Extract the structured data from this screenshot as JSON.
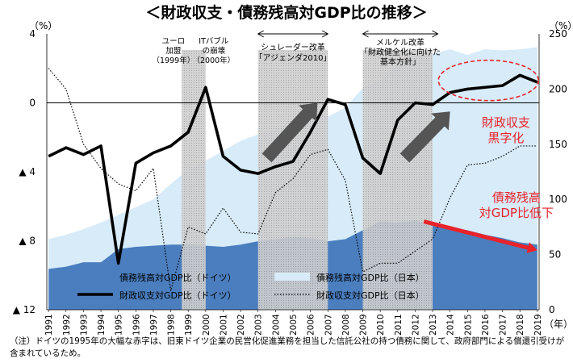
{
  "chart_data": {
    "type": "line",
    "title": "＜財政収支・債務残高対GDP比の推移＞",
    "left_axis": {
      "unit": "（%）",
      "ticks": [
        4,
        0,
        -4,
        -8,
        -12
      ],
      "tick_labels": [
        "4",
        "0",
        "▲ 4",
        "▲ 8",
        "▲ 12"
      ],
      "ylim": [
        -12,
        4
      ]
    },
    "right_axis": {
      "unit": "（%）",
      "ticks": [
        250,
        200,
        150,
        100,
        50,
        0
      ],
      "tick_labels": [
        "250",
        "200",
        "150",
        "100",
        "50",
        "0"
      ],
      "ylim": [
        0,
        250
      ]
    },
    "x_unit": "（年）",
    "x": [
      1991,
      1992,
      1993,
      1994,
      1995,
      1996,
      1997,
      1998,
      1999,
      2000,
      2001,
      2002,
      2003,
      2004,
      2005,
      2006,
      2007,
      2008,
      2009,
      2010,
      2011,
      2012,
      2013,
      2014,
      2015,
      2016,
      2017,
      2018,
      2019
    ],
    "series": [
      {
        "name": "債務残高対GDP比（ドイツ）",
        "axis": "right",
        "style": "area",
        "color": "#4a7ebf",
        "values": [
          37,
          39,
          43,
          43,
          55,
          57,
          58,
          59,
          59,
          58,
          57,
          59,
          62,
          64,
          66,
          65,
          62,
          64,
          72,
          80,
          79,
          81,
          77,
          75,
          72,
          68,
          65,
          61,
          59
        ]
      },
      {
        "name": "債務残高対GDP比（日本）",
        "axis": "right",
        "style": "area",
        "color": "#d7ebf8",
        "values": [
          64,
          68,
          73,
          79,
          86,
          93,
          100,
          114,
          127,
          135,
          144,
          153,
          159,
          163,
          170,
          176,
          175,
          183,
          201,
          207,
          222,
          229,
          232,
          236,
          231,
          236,
          235,
          236,
          238
        ]
      },
      {
        "name": "財政収支対GDP比（ドイツ）",
        "axis": "left",
        "style": "line",
        "color": "#000000",
        "values": [
          -3.1,
          -2.6,
          -3.0,
          -2.5,
          -9.3,
          -3.5,
          -2.9,
          -2.5,
          -1.7,
          0.9,
          -3.1,
          -3.9,
          -4.1,
          -3.7,
          -3.4,
          -1.7,
          0.2,
          -0.1,
          -3.2,
          -4.1,
          -1.0,
          0.0,
          -0.1,
          0.6,
          0.8,
          0.9,
          1.0,
          1.6,
          1.2
        ]
      },
      {
        "name": "財政収支対GDP比（日本）",
        "axis": "left",
        "style": "dotted",
        "color": "#000000",
        "values": [
          2.0,
          0.8,
          -2.4,
          -3.8,
          -4.7,
          -5.1,
          -3.8,
          -10.9,
          -7.2,
          -7.6,
          -6.1,
          -7.5,
          -7.6,
          -5.2,
          -4.4,
          -3.0,
          -2.7,
          -4.5,
          -9.8,
          -9.3,
          -9.3,
          -8.6,
          -7.9,
          -5.5,
          -3.6,
          -3.5,
          -3.1,
          -2.5,
          -2.5
        ]
      }
    ],
    "shaded_periods": [
      {
        "from": 1999,
        "to": 2000,
        "label_lines": [
          "ユーロ",
          "加盟",
          "（1999年）"
        ],
        "label2_lines": [
          "ITバブル",
          "の崩壊",
          "（2000年）"
        ]
      },
      {
        "from": 2003,
        "to": 2007,
        "label_lines": [
          "シュレーダー改革",
          "「アジェンダ2010」"
        ]
      },
      {
        "from": 2009,
        "to": 2013,
        "label_lines": [
          "メルケル改革",
          "「財政健全化に向けた",
          "基本方針」"
        ]
      }
    ],
    "annotations": {
      "surplus": [
        "財政収支",
        "黒字化"
      ],
      "debt_down": [
        "債務残高",
        "対GDP比低下"
      ]
    },
    "colors": {
      "annotation_red": "#e8232a",
      "arrow_gray": "#555555",
      "shade": "#c8c8c8"
    },
    "grid": false
  },
  "footnote": "（注）ドイツの1995年の大幅な赤字は、旧東ドイツ企業の民営化促進業務を担当した信託公社の持つ債務に関して、政府部門による償還引受けが含まれているため。"
}
